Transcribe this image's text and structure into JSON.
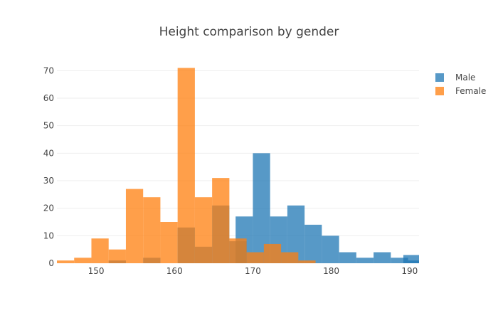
{
  "chart_data": {
    "type": "bar",
    "title": "Height comparison by gender",
    "barmode": "overlay",
    "opacity": 0.75,
    "bin_size": 2.2,
    "xlim": [
      145.0,
      191.2
    ],
    "ylim": [
      0,
      75
    ],
    "x_ticks": [
      150,
      160,
      170,
      180,
      190
    ],
    "y_ticks": [
      0,
      10,
      20,
      30,
      40,
      50,
      60,
      70
    ],
    "grid": true,
    "legend_position": "top-right",
    "series": [
      {
        "name": "Male",
        "color": "#1f77b4",
        "bins": [
          {
            "start": 151.6,
            "count": 1
          },
          {
            "start": 156.0,
            "count": 2
          },
          {
            "start": 160.4,
            "count": 13
          },
          {
            "start": 162.6,
            "count": 6
          },
          {
            "start": 164.8,
            "count": 21
          },
          {
            "start": 167.0,
            "count": 8
          },
          {
            "start": 167.8,
            "count": 17
          },
          {
            "start": 170.0,
            "count": 40
          },
          {
            "start": 172.2,
            "count": 17
          },
          {
            "start": 174.4,
            "count": 21
          },
          {
            "start": 176.6,
            "count": 14
          },
          {
            "start": 178.8,
            "count": 10
          },
          {
            "start": 181.0,
            "count": 4
          },
          {
            "start": 183.2,
            "count": 2
          },
          {
            "start": 185.4,
            "count": 4
          },
          {
            "start": 187.6,
            "count": 2
          },
          {
            "start": 189.8,
            "count": 1
          },
          {
            "start": 189.2,
            "count": 3
          }
        ]
      },
      {
        "name": "Female",
        "color": "#ff7f0e",
        "bins": [
          {
            "start": 145.0,
            "count": 1
          },
          {
            "start": 147.2,
            "count": 2
          },
          {
            "start": 149.4,
            "count": 9
          },
          {
            "start": 151.6,
            "count": 5
          },
          {
            "start": 153.8,
            "count": 27
          },
          {
            "start": 156.0,
            "count": 24
          },
          {
            "start": 158.2,
            "count": 15
          },
          {
            "start": 160.4,
            "count": 71
          },
          {
            "start": 162.6,
            "count": 24
          },
          {
            "start": 164.8,
            "count": 31
          },
          {
            "start": 167.0,
            "count": 9
          },
          {
            "start": 169.2,
            "count": 4
          },
          {
            "start": 171.4,
            "count": 7
          },
          {
            "start": 173.6,
            "count": 4
          },
          {
            "start": 175.8,
            "count": 1
          }
        ]
      }
    ]
  }
}
